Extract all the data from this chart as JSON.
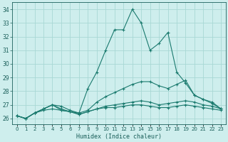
{
  "title": "",
  "xlabel": "Humidex (Indice chaleur)",
  "ylabel": "",
  "bg_color": "#ceeeed",
  "grid_color": "#a8d8d5",
  "line_color": "#1a7a6e",
  "x": [
    0,
    1,
    2,
    3,
    4,
    5,
    6,
    7,
    8,
    9,
    10,
    11,
    12,
    13,
    14,
    15,
    16,
    17,
    18,
    19,
    20,
    21,
    22,
    23
  ],
  "series": [
    [
      26.2,
      26.0,
      26.4,
      26.6,
      26.7,
      26.6,
      26.5,
      26.4,
      28.2,
      29.4,
      31.0,
      32.5,
      32.5,
      34.0,
      33.0,
      31.0,
      31.5,
      32.3,
      29.4,
      28.6,
      27.7,
      27.4,
      27.1,
      26.7
    ],
    [
      26.2,
      26.0,
      26.4,
      26.7,
      27.0,
      26.9,
      26.6,
      26.4,
      26.6,
      27.2,
      27.6,
      27.9,
      28.2,
      28.5,
      28.7,
      28.7,
      28.4,
      28.2,
      28.5,
      28.8,
      27.7,
      27.4,
      27.2,
      26.7
    ],
    [
      26.2,
      26.0,
      26.4,
      26.7,
      27.0,
      26.7,
      26.5,
      26.3,
      26.5,
      26.7,
      26.9,
      27.0,
      27.1,
      27.2,
      27.3,
      27.2,
      27.0,
      27.1,
      27.2,
      27.3,
      27.2,
      27.0,
      26.9,
      26.7
    ],
    [
      26.2,
      26.0,
      26.4,
      26.7,
      27.0,
      26.6,
      26.5,
      26.3,
      26.5,
      26.7,
      26.8,
      26.8,
      26.9,
      27.0,
      27.0,
      26.9,
      26.8,
      26.8,
      26.9,
      27.0,
      26.9,
      26.8,
      26.7,
      26.6
    ]
  ],
  "ylim": [
    25.6,
    34.5
  ],
  "yticks": [
    26,
    27,
    28,
    29,
    30,
    31,
    32,
    33,
    34
  ],
  "xlim": [
    -0.5,
    23.5
  ],
  "xticks": [
    0,
    1,
    2,
    3,
    4,
    5,
    6,
    7,
    8,
    9,
    10,
    11,
    12,
    13,
    14,
    15,
    16,
    17,
    18,
    19,
    20,
    21,
    22,
    23
  ],
  "xtick_labels": [
    "0",
    "1",
    "2",
    "3",
    "4",
    "5",
    "6",
    "7",
    "8",
    "9",
    "10",
    "11",
    "12",
    "13",
    "14",
    "15",
    "16",
    "17",
    "18",
    "19",
    "20",
    "21",
    "22",
    "23"
  ],
  "marker": "+",
  "linewidth": 0.8,
  "markersize": 3.5,
  "markeredgewidth": 0.8,
  "font_color": "#1a5f5a",
  "xlabel_fontsize": 6.0,
  "ytick_fontsize": 5.5,
  "xtick_fontsize": 5.0
}
